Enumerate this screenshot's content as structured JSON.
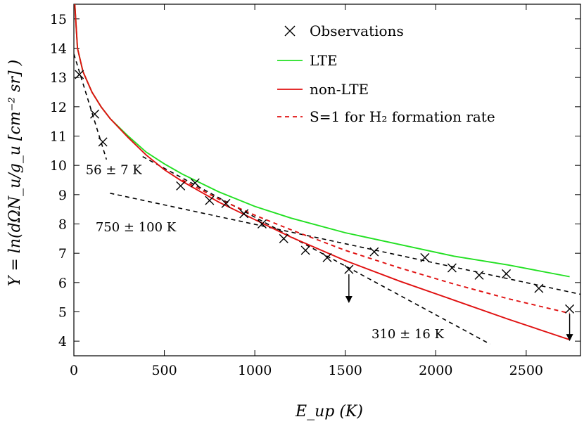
{
  "chart_data": {
    "type": "scatter",
    "xlabel": "E_up (K)",
    "ylabel": "Y = ln(dΩN_u/g_u [cm⁻² sr] )",
    "xlim": [
      0,
      2800
    ],
    "ylim": [
      3.5,
      15.5
    ],
    "x_ticks": [
      0,
      500,
      1000,
      1500,
      2000,
      2500
    ],
    "y_ticks": [
      4,
      5,
      6,
      7,
      8,
      9,
      10,
      11,
      12,
      13,
      14,
      15
    ],
    "legend_position": "top-right",
    "grid": false,
    "series": [
      {
        "name": "Observations",
        "kind": "scatter",
        "marker": "x",
        "color": "#000000",
        "points": [
          {
            "x": 30,
            "y": 13.1
          },
          {
            "x": 115,
            "y": 11.75
          },
          {
            "x": 160,
            "y": 10.8
          },
          {
            "x": 590,
            "y": 9.3
          },
          {
            "x": 670,
            "y": 9.4
          },
          {
            "x": 750,
            "y": 8.8
          },
          {
            "x": 840,
            "y": 8.7
          },
          {
            "x": 940,
            "y": 8.35
          },
          {
            "x": 1040,
            "y": 8.0
          },
          {
            "x": 1160,
            "y": 7.5
          },
          {
            "x": 1280,
            "y": 7.1
          },
          {
            "x": 1400,
            "y": 6.85
          },
          {
            "x": 1520,
            "y": 6.45
          },
          {
            "x": 1660,
            "y": 7.05
          },
          {
            "x": 1940,
            "y": 6.85
          },
          {
            "x": 2090,
            "y": 6.5
          },
          {
            "x": 2240,
            "y": 6.25
          },
          {
            "x": 2390,
            "y": 6.3
          },
          {
            "x": 2570,
            "y": 5.8
          },
          {
            "x": 2740,
            "y": 5.1
          }
        ],
        "upper_limits": [
          {
            "x": 1520,
            "y_from": 6.45,
            "y_to": 5.3
          },
          {
            "x": 2740,
            "y_from": 5.1,
            "y_to": 4.0
          }
        ]
      },
      {
        "name": "LTE",
        "kind": "line",
        "color": "#22e022",
        "dash": "solid",
        "x": [
          5,
          20,
          50,
          100,
          150,
          200,
          300,
          400,
          500,
          600,
          800,
          1000,
          1200,
          1500,
          1800,
          2100,
          2400,
          2740
        ],
        "y": [
          15.5,
          14.0,
          13.2,
          12.5,
          12.0,
          11.6,
          11.0,
          10.45,
          10.05,
          9.7,
          9.1,
          8.6,
          8.2,
          7.7,
          7.3,
          6.9,
          6.6,
          6.2
        ]
      },
      {
        "name": "non-LTE",
        "kind": "line",
        "color": "#e01010",
        "dash": "solid",
        "x": [
          5,
          20,
          50,
          100,
          150,
          200,
          300,
          400,
          500,
          600,
          800,
          1000,
          1200,
          1500,
          1800,
          2100,
          2400,
          2740
        ],
        "y": [
          15.5,
          14.0,
          13.2,
          12.5,
          12.0,
          11.6,
          10.95,
          10.35,
          9.85,
          9.45,
          8.75,
          8.15,
          7.55,
          6.75,
          6.05,
          5.4,
          4.75,
          4.05
        ]
      },
      {
        "name": "S=1 for H₂ formation rate",
        "kind": "line",
        "color": "#e01010",
        "dash": "dashed",
        "x": [
          600,
          800,
          1000,
          1200,
          1500,
          1800,
          2100,
          2400,
          2740
        ],
        "y": [
          9.5,
          8.85,
          8.3,
          7.8,
          7.1,
          6.5,
          5.95,
          5.45,
          4.95
        ]
      },
      {
        "kind": "fit",
        "color": "#000000",
        "dash": "dashed",
        "x": [
          0,
          180
        ],
        "y": [
          13.8,
          10.2
        ]
      },
      {
        "kind": "fit",
        "color": "#000000",
        "dash": "dashed",
        "x": [
          380,
          2300
        ],
        "y": [
          10.3,
          3.9
        ]
      },
      {
        "kind": "fit",
        "color": "#000000",
        "dash": "dashed",
        "x": [
          200,
          2800
        ],
        "y": [
          9.05,
          5.6
        ]
      }
    ],
    "annotations": [
      {
        "text": "56 ± 7 K",
        "x": 65,
        "y": 9.7
      },
      {
        "text": "750 ± 100 K",
        "x": 120,
        "y": 7.75
      },
      {
        "text": "310 ± 16 K",
        "x": 1645,
        "y": 4.1
      }
    ]
  }
}
